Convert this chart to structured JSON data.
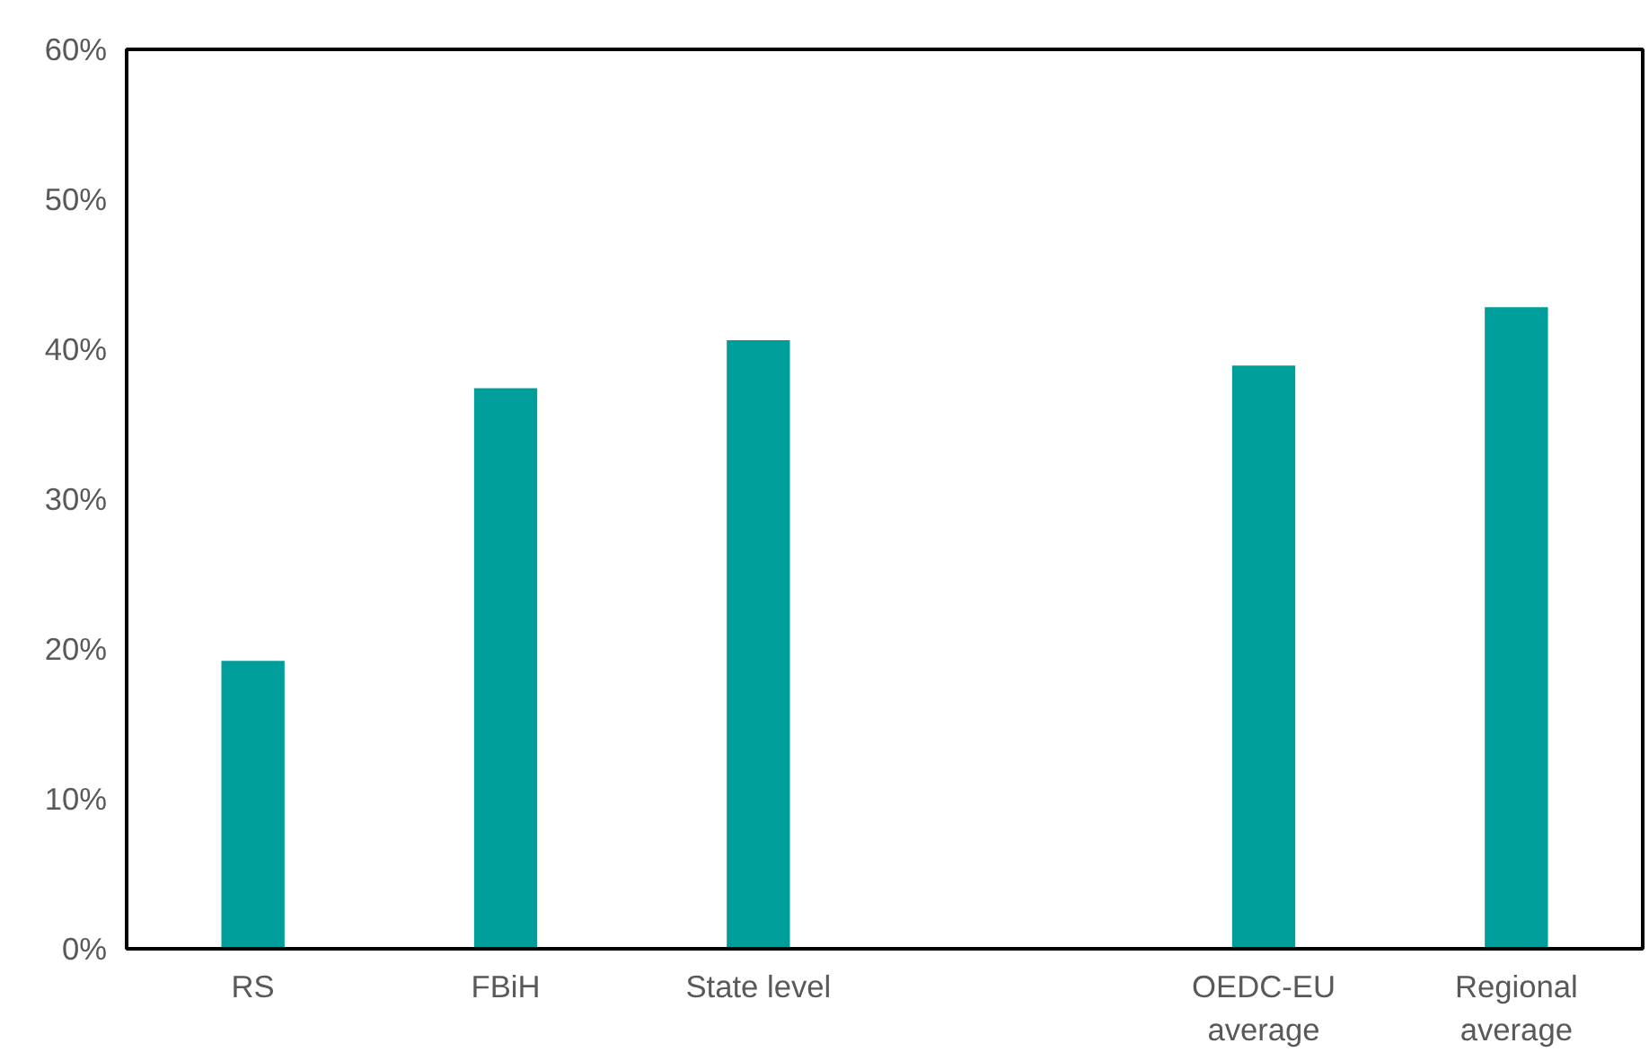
{
  "chart_data": {
    "type": "bar",
    "categories": [
      "RS",
      "FBiH",
      "State level",
      null,
      "OEDC-EU average",
      "Regional average"
    ],
    "values": [
      19.2,
      37.4,
      40.6,
      null,
      38.9,
      42.8
    ],
    "color": "#009e9a",
    "ylim": [
      0,
      60
    ],
    "yticks": [
      {
        "value": 0,
        "label": "0%"
      },
      {
        "value": 10,
        "label": "10%"
      },
      {
        "value": 20,
        "label": "20%"
      },
      {
        "value": 30,
        "label": "30%"
      },
      {
        "value": 40,
        "label": "40%"
      },
      {
        "value": 50,
        "label": "50%"
      },
      {
        "value": 60,
        "label": "60%"
      }
    ],
    "grid": false
  }
}
